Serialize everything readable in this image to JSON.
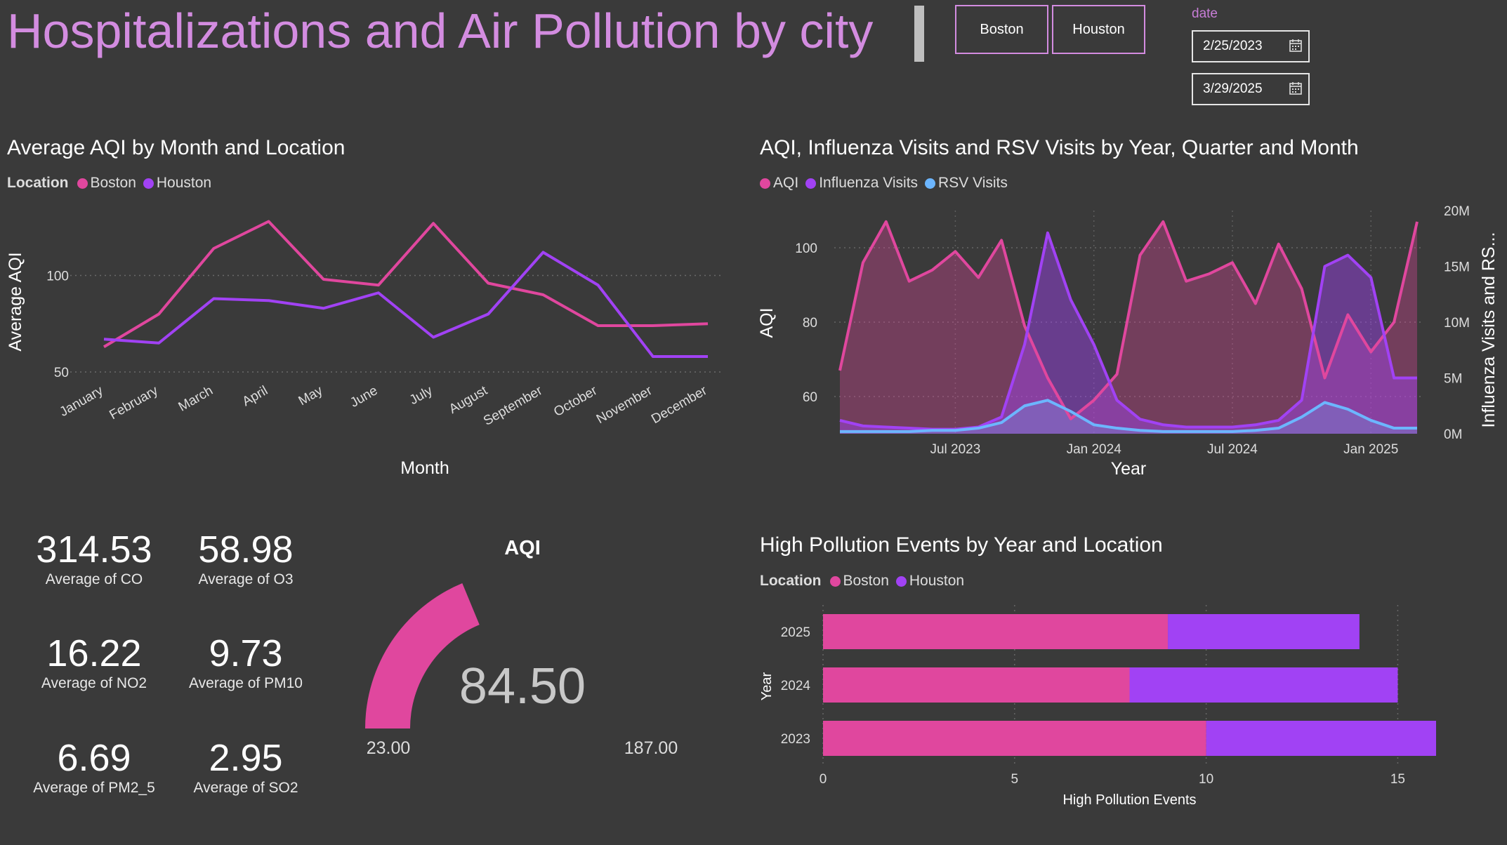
{
  "header": {
    "title": "Hospitalizations and Air Pollution by city",
    "slicer_boston": "Boston",
    "slicer_houston": "Houston",
    "date_label": "date",
    "date_start": "2/25/2023",
    "date_end": "3/29/2025"
  },
  "colors": {
    "boston": "#e0479e",
    "houston": "#a142f4",
    "aqi": "#e0479e",
    "influenza": "#a142f4",
    "rsv": "#6cb6ff",
    "background": "#3a3a3a"
  },
  "line_chart": {
    "title": "Average AQI by Month and Location",
    "legend_title": "Location",
    "xlabel": "Month",
    "ylabel": "Average AQI"
  },
  "combo_chart": {
    "title": "AQI, Influenza Visits and RSV Visits by Year, Quarter and Month",
    "xlabel": "Year",
    "ylabel_left": "AQI",
    "ylabel_right": "Influenza Visits and RS..."
  },
  "bar_chart": {
    "title": "High Pollution Events by Year and Location",
    "legend_title": "Location",
    "xlabel": "High Pollution Events",
    "ylabel": "Year"
  },
  "kpis": [
    {
      "value": "314.53",
      "label": "Average of CO"
    },
    {
      "value": "58.98",
      "label": "Average of O3"
    },
    {
      "value": "16.22",
      "label": "Average of NO2"
    },
    {
      "value": "9.73",
      "label": "Average of PM10"
    },
    {
      "value": "6.69",
      "label": "Average of PM2_5"
    },
    {
      "value": "2.95",
      "label": "Average of SO2"
    }
  ],
  "gauge": {
    "title": "AQI",
    "value_label": "84.50",
    "min_label": "23.00",
    "max_label": "187.00"
  },
  "chart_data": [
    {
      "type": "line",
      "title": "Average AQI by Month and Location",
      "xlabel": "Month",
      "ylabel": "Average AQI",
      "categories": [
        "January",
        "February",
        "March",
        "April",
        "May",
        "June",
        "July",
        "August",
        "September",
        "October",
        "November",
        "December"
      ],
      "ylim": [
        50,
        130
      ],
      "yticks": [
        50,
        100
      ],
      "legend_position": "top-left",
      "grid": true,
      "series": [
        {
          "name": "Boston",
          "values": [
            63,
            80,
            114,
            128,
            98,
            95,
            127,
            96,
            90,
            74,
            74,
            75
          ]
        },
        {
          "name": "Houston",
          "values": [
            67,
            65,
            88,
            87,
            83,
            91,
            68,
            80,
            112,
            95,
            58,
            58
          ]
        }
      ]
    },
    {
      "type": "area",
      "title": "AQI, Influenza Visits and RSV Visits by Year, Quarter and Month",
      "xlabel": "Year",
      "x": [
        "2023-02",
        "2023-03",
        "2023-04",
        "2023-05",
        "2023-06",
        "2023-07",
        "2023-08",
        "2023-09",
        "2023-10",
        "2023-11",
        "2023-12",
        "2024-01",
        "2024-02",
        "2024-03",
        "2024-04",
        "2024-05",
        "2024-06",
        "2024-07",
        "2024-08",
        "2024-09",
        "2024-10",
        "2024-11",
        "2024-12",
        "2025-01",
        "2025-02",
        "2025-03"
      ],
      "xticks": [
        "Jul 2023",
        "Jan 2024",
        "Jul 2024",
        "Jan 2025"
      ],
      "y_left": {
        "label": "AQI",
        "ylim": [
          50,
          110
        ],
        "ticks": [
          60,
          80,
          100
        ]
      },
      "y_right": {
        "label": "Influenza Visits and RS...",
        "ylim": [
          0,
          20000000
        ],
        "ticks": [
          "0M",
          "5M",
          "10M",
          "15M",
          "20M"
        ]
      },
      "legend_position": "top-left",
      "grid": true,
      "series": [
        {
          "name": "AQI",
          "axis": "left",
          "values": [
            67,
            96,
            107,
            91,
            94,
            99,
            92,
            102,
            79,
            65,
            54,
            59,
            66,
            98,
            107,
            91,
            93,
            96,
            85,
            101,
            89,
            65,
            82,
            72,
            80,
            107
          ]
        },
        {
          "name": "Influenza Visits",
          "axis": "right",
          "values": [
            1200000,
            700000,
            600000,
            500000,
            400000,
            400000,
            600000,
            1500000,
            8000000,
            18000000,
            12000000,
            8000000,
            3000000,
            1300000,
            800000,
            600000,
            600000,
            600000,
            800000,
            1200000,
            3000000,
            15000000,
            16000000,
            14000000,
            5000000,
            5000000
          ]
        },
        {
          "name": "RSV Visits",
          "axis": "right",
          "values": [
            200000,
            200000,
            200000,
            200000,
            300000,
            300000,
            500000,
            1000000,
            2500000,
            3000000,
            2000000,
            800000,
            500000,
            300000,
            200000,
            200000,
            200000,
            200000,
            300000,
            500000,
            1500000,
            2800000,
            2200000,
            1200000,
            500000,
            500000
          ]
        }
      ]
    },
    {
      "type": "bar",
      "orientation": "horizontal",
      "stacked": true,
      "title": "High Pollution Events by Year and Location",
      "xlabel": "High Pollution Events",
      "ylabel": "Year",
      "categories": [
        "2025",
        "2024",
        "2023"
      ],
      "xlim": [
        0,
        16
      ],
      "xticks": [
        0,
        5,
        10,
        15
      ],
      "legend_position": "top-left",
      "series": [
        {
          "name": "Boston",
          "values": [
            9,
            8,
            10
          ]
        },
        {
          "name": "Houston",
          "values": [
            5,
            7,
            6
          ]
        }
      ]
    },
    {
      "type": "gauge",
      "title": "AQI",
      "value": 84.5,
      "min": 23,
      "max": 187
    }
  ]
}
